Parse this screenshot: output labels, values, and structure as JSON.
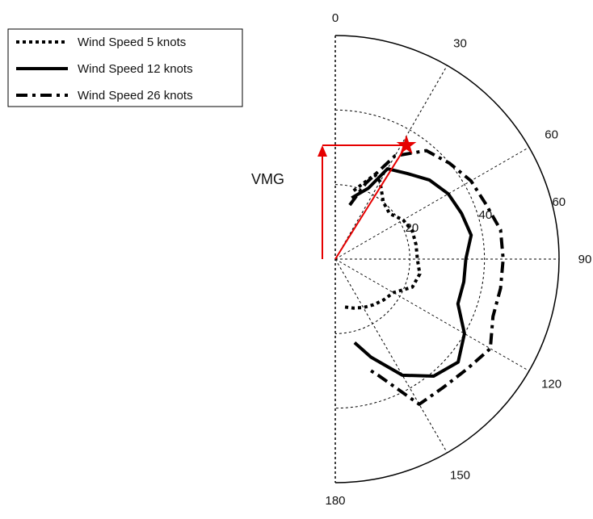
{
  "chart_data": {
    "type": "polar-line",
    "theta_zero": "top",
    "theta_direction": "clockwise",
    "theta_range": [
      0,
      180
    ],
    "theta_ticks": [
      0,
      30,
      60,
      90,
      120,
      150,
      180
    ],
    "theta_tick_labels": [
      "0",
      "30",
      "60",
      "90",
      "120",
      "150",
      "180"
    ],
    "r_max": 60,
    "r_ticks": [
      20,
      40,
      60
    ],
    "r_tick_labels": [
      "20",
      "40",
      "60"
    ],
    "grid": true,
    "legend_placement": "top-left",
    "series": [
      {
        "name": "Wind Speed 5 knots",
        "line_style": "dotted",
        "color": "#000000",
        "theta": [
          15,
          25,
          30,
          40,
          50,
          60,
          70,
          80,
          90,
          100,
          110,
          120,
          130,
          140,
          150,
          160,
          170
        ],
        "r": [
          19,
          25,
          24,
          20,
          19,
          21,
          22,
          22,
          22,
          23,
          22,
          18,
          17,
          16,
          15,
          14,
          13
        ]
      },
      {
        "name": "Wind Speed 12 knots",
        "line_style": "solid",
        "color": "#000000",
        "theta": [
          15,
          25,
          30,
          40,
          50,
          60,
          70,
          80,
          90,
          100,
          110,
          120,
          130,
          140,
          150,
          160,
          167
        ],
        "r": [
          17,
          21,
          28,
          30,
          33,
          35,
          36,
          37,
          35,
          35,
          35,
          40,
          43,
          41,
          36,
          28,
          23
        ]
      },
      {
        "name": "Wind Speed 26 knots",
        "line_style": "dashdot",
        "color": "#000000",
        "theta": [
          15,
          22,
          30,
          40,
          50,
          60,
          70,
          80,
          90,
          100,
          110,
          120,
          130,
          140,
          150,
          160,
          163
        ],
        "r": [
          15,
          22,
          32,
          38,
          40,
          42,
          43,
          45,
          45,
          45,
          45,
          48,
          46,
          45,
          45,
          33,
          31
        ]
      }
    ],
    "annotations": {
      "vmg_label": "VMG",
      "optimum_theta": 32,
      "optimum_r": 36,
      "color": "#e60000"
    }
  }
}
